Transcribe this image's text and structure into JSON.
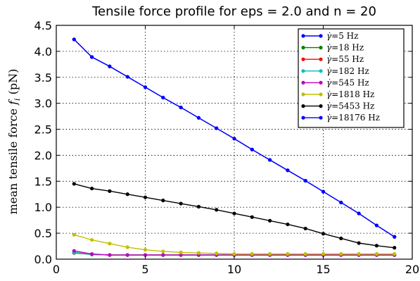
{
  "chart_data": {
    "type": "line",
    "title": "Tensile force profile for eps = 2.0 and n = 20",
    "xlabel": "",
    "ylabel_main": "mean tensile force ",
    "ylabel_var": "f",
    "ylabel_sub": "i",
    "ylabel_unit": " (pN)",
    "xlim": [
      0,
      20
    ],
    "ylim": [
      0,
      4.5
    ],
    "xticks": [
      0,
      5,
      10,
      15,
      20
    ],
    "xtick_labels": [
      "0",
      "5",
      "10",
      "15",
      "20"
    ],
    "yticks": [
      0,
      0.5,
      1.0,
      1.5,
      2.0,
      2.5,
      3.0,
      3.5,
      4.0,
      4.5
    ],
    "ytick_labels": [
      "0.0",
      "0.5",
      "1.0",
      "1.5",
      "2.0",
      "2.5",
      "3.0",
      "3.5",
      "4.0",
      "4.5"
    ],
    "grid": true,
    "legend_position": "top-right",
    "legend_symbol": "γ̇",
    "x": [
      1,
      2,
      3,
      4,
      5,
      6,
      7,
      8,
      9,
      10,
      11,
      12,
      13,
      14,
      15,
      16,
      17,
      18,
      19
    ],
    "series": [
      {
        "name": "=5 Hz",
        "color": "#0000ff",
        "values": [
          4.23,
          3.89,
          3.71,
          3.51,
          3.31,
          3.11,
          2.92,
          2.72,
          2.52,
          2.32,
          2.11,
          1.91,
          1.71,
          1.51,
          1.3,
          1.09,
          0.88,
          0.65,
          0.43
        ]
      },
      {
        "name": "=18 Hz",
        "color": "#008000",
        "values": [
          0.12,
          0.09,
          0.08,
          0.08,
          0.08,
          0.08,
          0.08,
          0.08,
          0.08,
          0.08,
          0.08,
          0.08,
          0.08,
          0.08,
          0.08,
          0.08,
          0.08,
          0.08,
          0.08
        ]
      },
      {
        "name": "=55 Hz",
        "color": "#ff0000",
        "values": [
          0.13,
          0.09,
          0.08,
          0.08,
          0.08,
          0.08,
          0.08,
          0.08,
          0.08,
          0.08,
          0.08,
          0.08,
          0.08,
          0.08,
          0.08,
          0.08,
          0.08,
          0.08,
          0.08
        ]
      },
      {
        "name": "=182 Hz",
        "color": "#00bfbf",
        "values": [
          0.13,
          0.09,
          0.08,
          0.08,
          0.08,
          0.08,
          0.08,
          0.08,
          0.08,
          0.08,
          0.08,
          0.08,
          0.08,
          0.08,
          0.08,
          0.08,
          0.08,
          0.08,
          0.08
        ]
      },
      {
        "name": "=545 Hz",
        "color": "#bf00bf",
        "values": [
          0.16,
          0.1,
          0.08,
          0.08,
          0.08,
          0.08,
          0.08,
          0.08,
          0.08,
          0.08,
          0.08,
          0.08,
          0.08,
          0.08,
          0.08,
          0.08,
          0.08,
          0.08,
          0.08
        ]
      },
      {
        "name": "=1818 Hz",
        "color": "#bfbf00",
        "values": [
          0.47,
          0.37,
          0.3,
          0.23,
          0.18,
          0.15,
          0.13,
          0.12,
          0.11,
          0.1,
          0.1,
          0.1,
          0.1,
          0.1,
          0.1,
          0.1,
          0.1,
          0.1,
          0.1
        ]
      },
      {
        "name": "=5453 Hz",
        "color": "#000000",
        "values": [
          1.45,
          1.36,
          1.31,
          1.25,
          1.19,
          1.13,
          1.07,
          1.01,
          0.95,
          0.88,
          0.81,
          0.74,
          0.67,
          0.59,
          0.49,
          0.4,
          0.31,
          0.26,
          0.22
        ]
      },
      {
        "name": "=18176 Hz",
        "color": "#0000ff",
        "values": [
          4.23,
          3.89,
          3.71,
          3.51,
          3.31,
          3.11,
          2.92,
          2.72,
          2.52,
          2.32,
          2.11,
          1.91,
          1.71,
          1.51,
          1.3,
          1.09,
          0.88,
          0.65,
          0.43
        ]
      }
    ]
  }
}
